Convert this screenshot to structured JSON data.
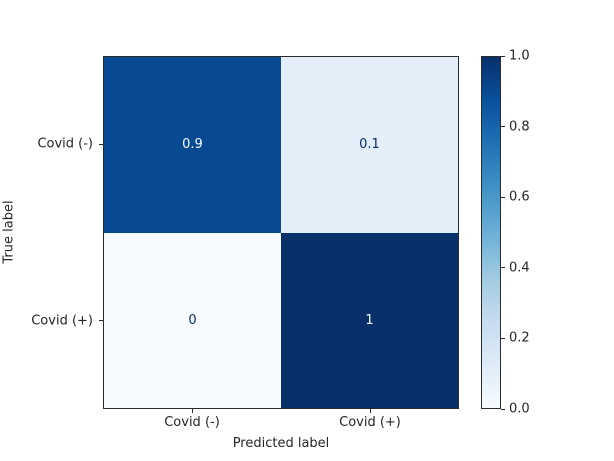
{
  "chart_data": {
    "type": "heatmap",
    "title": "",
    "xlabel": "Predicted label",
    "ylabel": "True label",
    "x_categories": [
      "Covid (-)",
      "Covid (+)"
    ],
    "y_categories": [
      "Covid (-)",
      "Covid (+)"
    ],
    "matrix": [
      [
        0.9,
        0.1
      ],
      [
        0,
        1
      ]
    ],
    "cell_labels": [
      [
        "0.9",
        "0.1"
      ],
      [
        "0",
        "1"
      ]
    ],
    "value_range": [
      0.0,
      1.0
    ],
    "colormap": "Blues",
    "grid": false,
    "legend_position": "colorbar-right",
    "colorbar_ticks": [
      "1.0",
      "0.8",
      "0.6",
      "0.4",
      "0.2",
      "0.0"
    ],
    "colors": {
      "cell_fills": [
        [
          "#084a92",
          "#e3eef9"
        ],
        [
          "#f7fbff",
          "#08306b"
        ]
      ],
      "cell_text": [
        [
          "#f7fbff",
          "#08306b"
        ],
        [
          "#08306b",
          "#f7fbff"
        ]
      ],
      "colorbar_gradient_top_to_bottom": [
        "#08306b",
        "#08519c",
        "#2171b5",
        "#4292c6",
        "#6baed6",
        "#9ecae1",
        "#c6dbef",
        "#deebf7",
        "#f7fbff"
      ],
      "spine": "#2b2b2b",
      "text": "#262626",
      "background": "#ffffff"
    }
  }
}
